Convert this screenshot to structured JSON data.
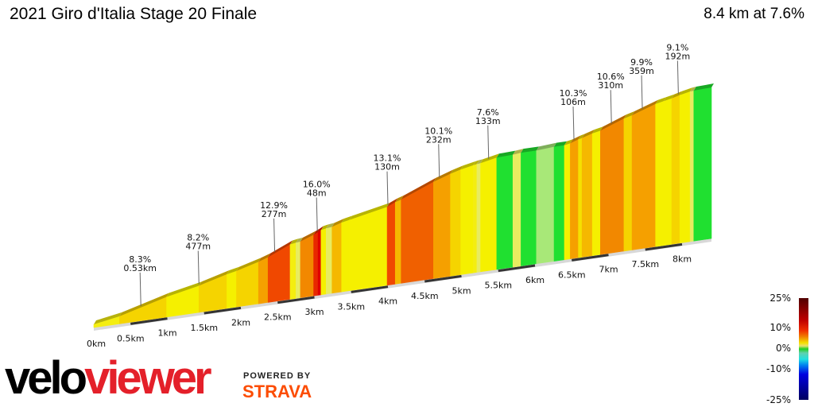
{
  "header": {
    "title": "2021 Giro d'Italia Stage 20 Finale",
    "summary": "8.4 km at 7.6%"
  },
  "chart_data": {
    "type": "area",
    "title": "2021 Giro d'Italia Stage 20 Finale",
    "xlabel": "",
    "ylabel": "",
    "x_ticks": [
      "0km",
      "0.5km",
      "1km",
      "1.5km",
      "2km",
      "2.5km",
      "3km",
      "3.5km",
      "4km",
      "4.5km",
      "5km",
      "5.5km",
      "6km",
      "6.5km",
      "7km",
      "7.5km",
      "8km"
    ],
    "xlim": [
      0,
      8.4
    ],
    "segments": [
      [
        0.35,
        5
      ],
      [
        0.99,
        8
      ],
      [
        1.43,
        6
      ],
      [
        1.81,
        8
      ],
      [
        1.94,
        6
      ],
      [
        2.24,
        8
      ],
      [
        2.37,
        10
      ],
      [
        2.67,
        13
      ],
      [
        2.75,
        5
      ],
      [
        2.81,
        3
      ],
      [
        2.99,
        11
      ],
      [
        3.05,
        14
      ],
      [
        3.09,
        16
      ],
      [
        3.16,
        6
      ],
      [
        3.24,
        3
      ],
      [
        3.37,
        9
      ],
      [
        3.48,
        6
      ],
      [
        3.99,
        6
      ],
      [
        4.1,
        13
      ],
      [
        4.18,
        9
      ],
      [
        4.62,
        12
      ],
      [
        4.85,
        10
      ],
      [
        4.99,
        8
      ],
      [
        5.16,
        6
      ],
      [
        5.21,
        5
      ],
      [
        5.26,
        3
      ],
      [
        5.48,
        6
      ],
      [
        5.7,
        1
      ],
      [
        5.81,
        3
      ],
      [
        6.02,
        0
      ],
      [
        6.26,
        2
      ],
      [
        6.4,
        0
      ],
      [
        6.48,
        6
      ],
      [
        6.59,
        10
      ],
      [
        6.64,
        7
      ],
      [
        6.78,
        9
      ],
      [
        6.89,
        6
      ],
      [
        7.21,
        11
      ],
      [
        7.32,
        8
      ],
      [
        7.64,
        10
      ],
      [
        7.75,
        6
      ],
      [
        7.86,
        6
      ],
      [
        7.97,
        8
      ],
      [
        8.11,
        6
      ],
      [
        8.16,
        3
      ],
      [
        8.4,
        1
      ]
    ],
    "annotations": [
      {
        "km": 0.64,
        "grade": "8.3%",
        "length": "0.53km"
      },
      {
        "km": 1.43,
        "grade": "8.2%",
        "length": "477m"
      },
      {
        "km": 2.46,
        "grade": "12.9%",
        "length": "277m"
      },
      {
        "km": 3.04,
        "grade": "16.0%",
        "length": "48m"
      },
      {
        "km": 4.0,
        "grade": "13.1%",
        "length": "130m"
      },
      {
        "km": 4.7,
        "grade": "10.1%",
        "length": "232m"
      },
      {
        "km": 5.37,
        "grade": "7.6%",
        "length": "133m"
      },
      {
        "km": 6.53,
        "grade": "10.3%",
        "length": "106m"
      },
      {
        "km": 7.04,
        "grade": "10.6%",
        "length": "310m"
      },
      {
        "km": 7.46,
        "grade": "9.9%",
        "length": "359m"
      },
      {
        "km": 7.95,
        "grade": "9.1%",
        "length": "192m"
      }
    ],
    "legend": {
      "labels": [
        "25%",
        "10%",
        "0%",
        "-10%",
        "-25%"
      ],
      "placement": "bottom-right"
    }
  },
  "branding": {
    "logo_velo": "velo",
    "logo_viewer": "viewer",
    "powered_by": "POWERED BY",
    "strava": "STRAVA"
  }
}
